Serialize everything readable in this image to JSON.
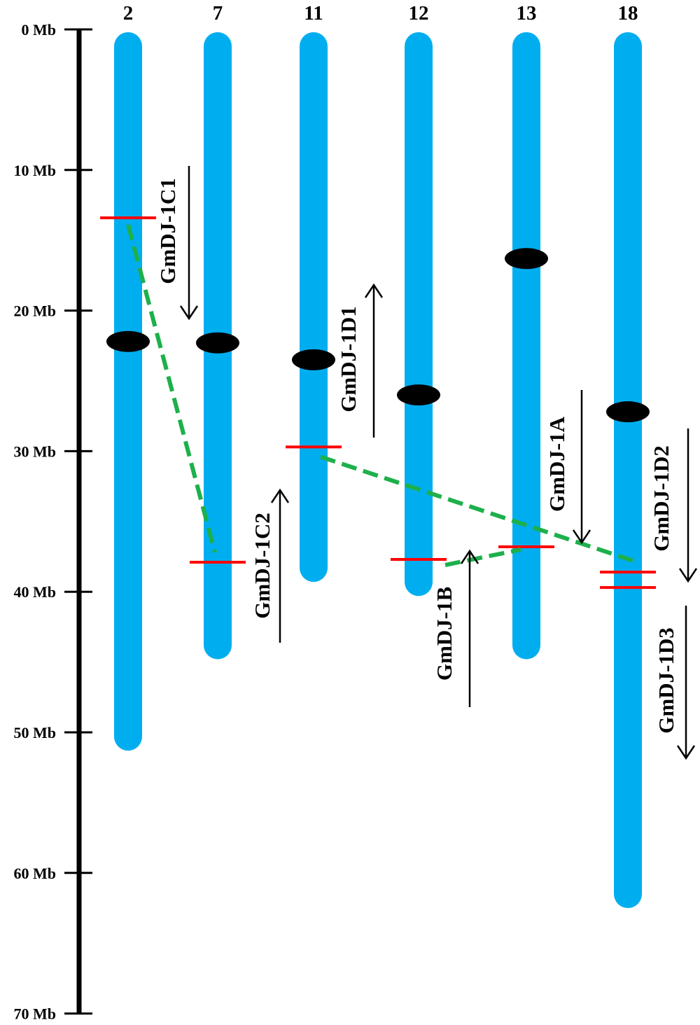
{
  "scale": {
    "unit": "Mb",
    "min": 0,
    "max": 70,
    "ticks": [
      {
        "value": 0,
        "label": "0 Mb"
      },
      {
        "value": 10,
        "label": "10 Mb"
      },
      {
        "value": 20,
        "label": "20 Mb"
      },
      {
        "value": 30,
        "label": "30 Mb"
      },
      {
        "value": 40,
        "label": "40 Mb"
      },
      {
        "value": 50,
        "label": "50 Mb"
      },
      {
        "value": 60,
        "label": "60 Mb"
      },
      {
        "value": 70,
        "label": "70 Mb"
      }
    ]
  },
  "colors": {
    "chromosome": "#00aeef",
    "centromere": "#000000",
    "gene_marker": "#ff0000",
    "duplication_link": "#1db04b",
    "axis": "#000000"
  },
  "chromosomes": [
    {
      "id": "2",
      "label": "2",
      "length": 51.3,
      "centromere": 22.2
    },
    {
      "id": "7",
      "label": "7",
      "length": 44.8,
      "centromere": 22.3
    },
    {
      "id": "11",
      "label": "11",
      "length": 39.3,
      "centromere": 23.5
    },
    {
      "id": "12",
      "label": "12",
      "length": 40.3,
      "centromere": 26.0
    },
    {
      "id": "13",
      "label": "13",
      "length": 44.8,
      "centromere": 16.3
    },
    {
      "id": "18",
      "label": "18",
      "length": 62.5,
      "centromere": 27.2
    }
  ],
  "genes": [
    {
      "name": "GmDJ-1C1",
      "chromosome": "2",
      "position": 13.4,
      "strand": "-"
    },
    {
      "name": "GmDJ-1C2",
      "chromosome": "7",
      "position": 37.9,
      "strand": "+"
    },
    {
      "name": "GmDJ-1D1",
      "chromosome": "11",
      "position": 29.7,
      "strand": "+"
    },
    {
      "name": "GmDJ-1B",
      "chromosome": "12",
      "position": 37.7,
      "strand": "+"
    },
    {
      "name": "GmDJ-1A",
      "chromosome": "13",
      "position": 36.8,
      "strand": "-"
    },
    {
      "name": "GmDJ-1D2",
      "chromosome": "18",
      "position": 38.6,
      "strand": "-"
    },
    {
      "name": "GmDJ-1D3",
      "chromosome": "18",
      "position": 39.7,
      "strand": "-"
    }
  ],
  "duplications": [
    {
      "from": "GmDJ-1C1",
      "to": "GmDJ-1C2"
    },
    {
      "from": "GmDJ-1D1",
      "to": "GmDJ-1D2"
    },
    {
      "from": "GmDJ-1B",
      "to": "GmDJ-1A"
    }
  ]
}
